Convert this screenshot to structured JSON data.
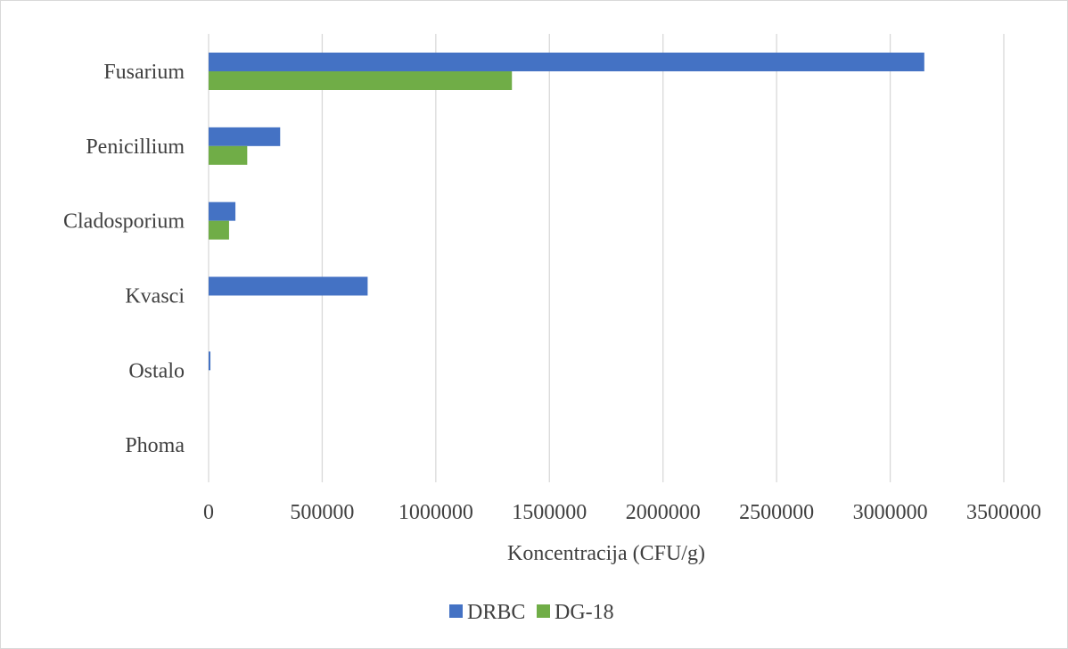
{
  "chart_data": {
    "type": "bar",
    "orientation": "horizontal",
    "title": "",
    "xlabel": "Koncentracija (CFU/g)",
    "ylabel": "",
    "categories": [
      "Fusarium",
      "Penicillium",
      "Cladosporium",
      "Kvasci",
      "Ostalo",
      "Phoma"
    ],
    "series": [
      {
        "name": "DRBC",
        "color": "#4472c4",
        "values": [
          3150000,
          315000,
          118000,
          700000,
          8000,
          0
        ]
      },
      {
        "name": "DG-18",
        "color": "#70ad47",
        "values": [
          1335000,
          170000,
          90000,
          0,
          0,
          0
        ]
      }
    ],
    "xlim": [
      0,
      3500000
    ],
    "xticks": [
      0,
      500000,
      1000000,
      1500000,
      2000000,
      2500000,
      3000000,
      3500000
    ],
    "xtick_labels": [
      "0",
      "500000",
      "1000000",
      "1500000",
      "2000000",
      "2500000",
      "3000000",
      "3500000"
    ],
    "grid": "vertical",
    "legend_position": "bottom"
  }
}
